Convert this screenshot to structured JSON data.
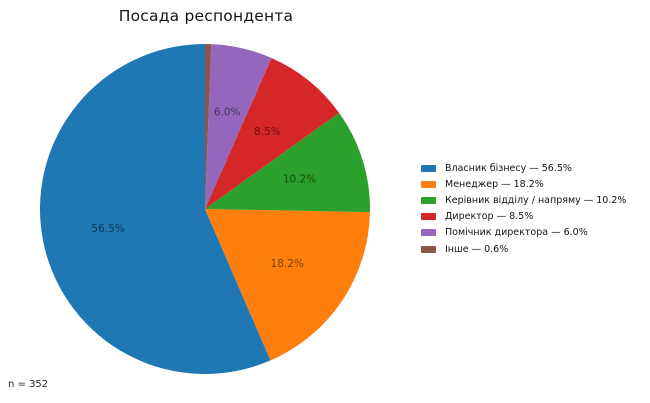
{
  "chart_data": {
    "type": "pie",
    "title": "Посада респондента",
    "note": "n = 352",
    "legend_position": "right",
    "start_angle_deg": 90,
    "direction": "counterclockwise",
    "pct_label_distance": 0.6,
    "background_color": "#ffffff",
    "segments": [
      {
        "label": "Власник бізнесу",
        "value": 56.5,
        "pct_label": "56.5%",
        "color": "#1f77b4",
        "pct_label_color": "#0e3a58",
        "legend_label": "Власник бізнесу — 56.5%"
      },
      {
        "label": "Менеджер",
        "value": 18.2,
        "pct_label": "18.2%",
        "color": "#ff7f0e",
        "pct_label_color": "#7f3f07",
        "legend_label": "Менеджер — 18.2%"
      },
      {
        "label": "Керівник відділу / напряму",
        "value": 10.2,
        "pct_label": "10.2%",
        "color": "#2ca02c",
        "pct_label_color": "#165016",
        "legend_label": "Керівник відділу / напряму — 10.2%"
      },
      {
        "label": "Директор",
        "value": 8.5,
        "pct_label": "8.5%",
        "color": "#d62728",
        "pct_label_color": "#6b1314",
        "legend_label": "Директор — 8.5%"
      },
      {
        "label": "Помічник директора",
        "value": 6.0,
        "pct_label": "6.0%",
        "color": "#9467bd",
        "pct_label_color": "#4a3360",
        "legend_label": "Помічник директора — 6.0%"
      },
      {
        "label": "Інше",
        "value": 0.6,
        "pct_label": "",
        "color": "#8c564b",
        "pct_label_color": "",
        "legend_label": "Інше — 0.6%"
      }
    ]
  }
}
